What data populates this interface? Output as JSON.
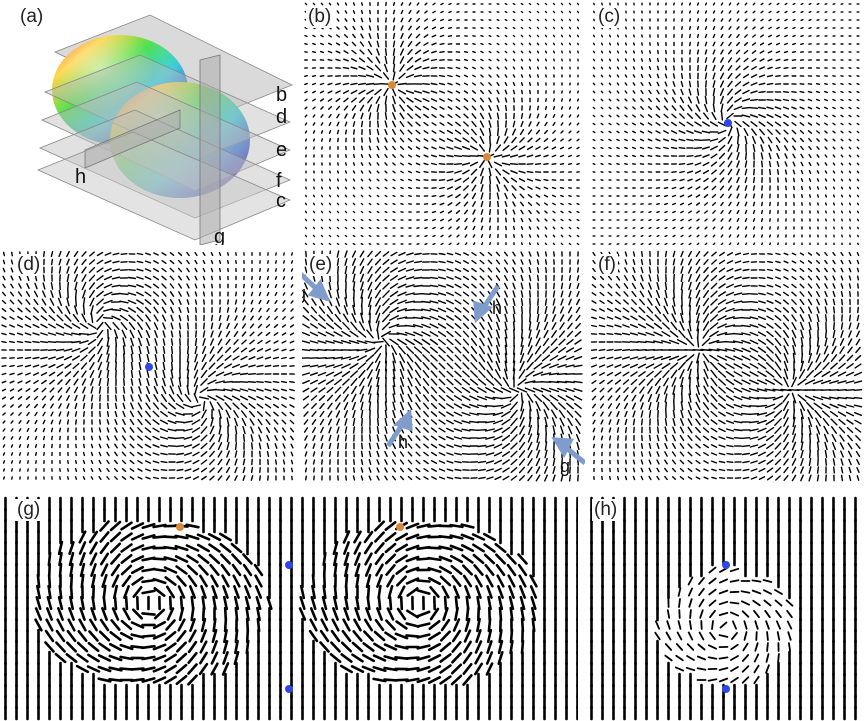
{
  "panels": {
    "a": {
      "label": "(a)"
    },
    "b": {
      "label": "(b)"
    },
    "c": {
      "label": "(c)"
    },
    "d": {
      "label": "(d)"
    },
    "e": {
      "label": "(e)"
    },
    "f": {
      "label": "(f)"
    },
    "g": {
      "label": "(g)"
    },
    "h": {
      "label": "(h)"
    }
  },
  "slice_labels": {
    "b": "b",
    "d": "d",
    "e": "e",
    "f": "f",
    "c": "c",
    "h": "h",
    "g": "g"
  },
  "arrow_labels": {
    "e_g_top": "g",
    "e_h_top": "h",
    "e_h_bottom": "h",
    "e_g_bottom": "g"
  },
  "colors": {
    "director": "#000000",
    "defect_orange": "#d9893a",
    "defect_blue": "#2f47e8",
    "arrow": "#7f9ccc",
    "slice_plane": "#9a9a9a"
  }
}
